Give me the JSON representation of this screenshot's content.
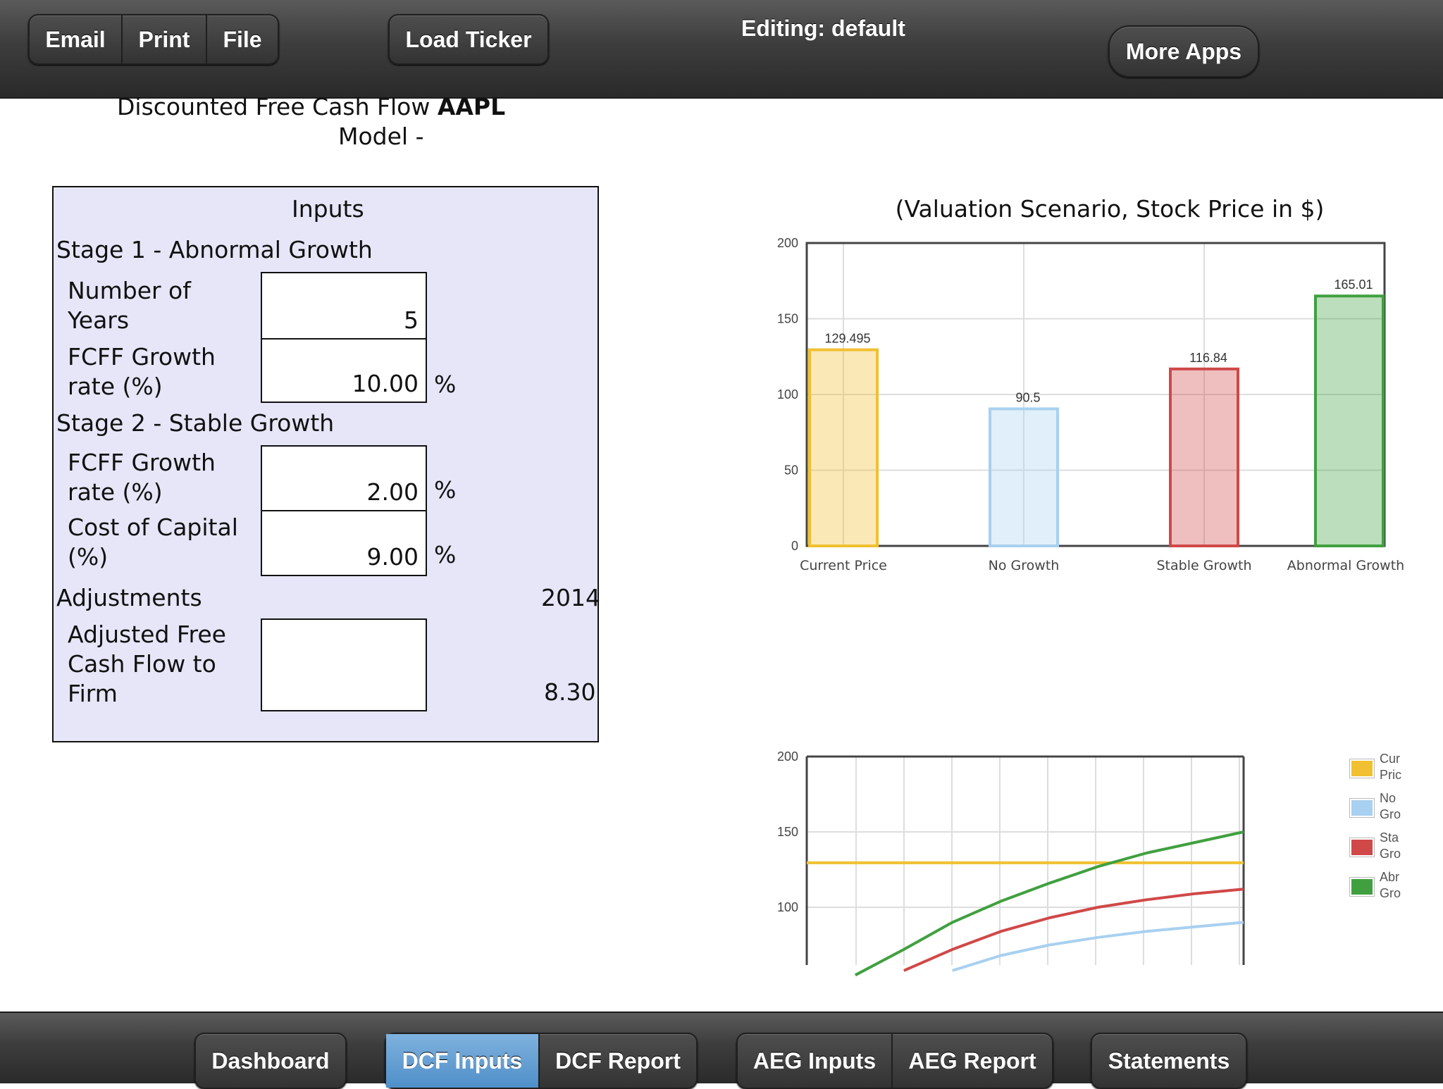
{
  "topbar": {
    "email": "Email",
    "print": "Print",
    "file": "File",
    "load_ticker": "Load Ticker",
    "editing": "Editing: default",
    "more_apps": "More Apps"
  },
  "title": {
    "line1": "Discounted Free Cash Flow",
    "ticker": "AAPL",
    "line2": "Model -"
  },
  "inputs": {
    "header": "Inputs",
    "stage1": "Stage 1 - Abnormal Growth",
    "num_years_label_1": "Number of",
    "num_years_label_2": "Years",
    "num_years": "5",
    "fcff1_label_1": "FCFF Growth",
    "fcff1_label_2": "rate (%)",
    "fcff1": "10.00",
    "stage2": "Stage 2 - Stable Growth",
    "fcff2_label_1": "FCFF Growth",
    "fcff2_label_2": "rate (%)",
    "fcff2": "2.00",
    "coc_label_1": "Cost of Capital",
    "coc_label_2": "(%)",
    "coc": "9.00",
    "pct": "%",
    "adjustments": "Adjustments",
    "year": "2014",
    "afcf_label_1": "Adjusted Free",
    "afcf_label_2": "Cash Flow to",
    "afcf_label_3": "Firm",
    "afcf_value": "8.30"
  },
  "chart_data": [
    {
      "type": "bar",
      "title": "(Valuation Scenario, Stock Price in $)",
      "categories": [
        "Current Price",
        "No Growth",
        "Stable Growth",
        "Abnormal Growth"
      ],
      "values": [
        129.495,
        90.5,
        116.84,
        165.01
      ],
      "value_labels": [
        "129.495",
        "90.5",
        "116.84",
        "165.01"
      ],
      "ylim": [
        0,
        200
      ],
      "yticks": [
        0,
        50,
        100,
        150,
        200
      ],
      "colors": [
        "#f0c030",
        "#a8d0f0",
        "#d04848",
        "#40a040"
      ],
      "grid": true
    },
    {
      "type": "line",
      "ylim": [
        60,
        200
      ],
      "yticks": [
        100,
        150,
        200
      ],
      "x": [
        0,
        1,
        2,
        3,
        4,
        5,
        6,
        7,
        8,
        9
      ],
      "series": [
        {
          "name": "Current Price",
          "color": "#f0c030",
          "values": [
            129.5,
            129.5,
            129.5,
            129.5,
            129.5,
            129.5,
            129.5,
            129.5,
            129.5,
            129.5
          ]
        },
        {
          "name": "No Growth",
          "color": "#a8d0f0",
          "values": [
            null,
            null,
            null,
            58,
            68,
            75,
            80,
            84,
            87,
            90
          ]
        },
        {
          "name": "Stable Growth",
          "color": "#d04848",
          "values": [
            null,
            null,
            58,
            72,
            84,
            93,
            100,
            105,
            109,
            112
          ]
        },
        {
          "name": "Abnormal Growth",
          "color": "#40a040",
          "values": [
            null,
            55,
            72,
            90,
            104,
            116,
            127,
            136,
            143,
            150
          ]
        }
      ],
      "legend_text": [
        [
          "Cur",
          "Pric"
        ],
        [
          "No",
          "Gro"
        ],
        [
          "Sta",
          "Gro"
        ],
        [
          "Abr",
          "Gro"
        ]
      ],
      "grid": true
    }
  ],
  "bottombar": {
    "dashboard": "Dashboard",
    "dcf_inputs": "DCF Inputs",
    "dcf_report": "DCF Report",
    "aeg_inputs": "AEG Inputs",
    "aeg_report": "AEG Report",
    "statements": "Statements"
  }
}
